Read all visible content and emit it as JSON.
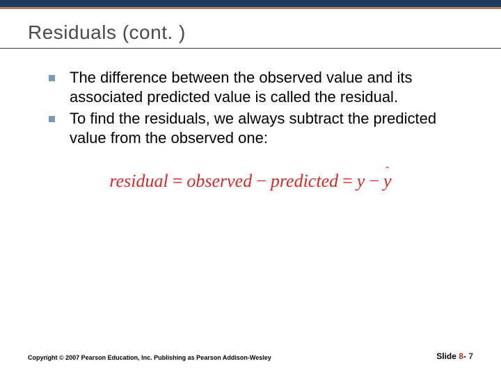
{
  "title": "Residuals (cont. )",
  "bullets": [
    "The difference between the observed value and its associated predicted value is called the residual.",
    "To find the residuals, we always subtract the predicted value from the observed one:"
  ],
  "formula": {
    "lhs": "residual",
    "term1": "observed",
    "term2": "predicted",
    "var1": "y",
    "var2": "y",
    "color": "#d42a2a"
  },
  "footer": {
    "copyright": "Copyright © 2007 Pearson Education, Inc. Publishing as Pearson Addison-Wesley",
    "slide_label": "Slide",
    "chapter": "8",
    "page": "7"
  },
  "colors": {
    "top_border": "#1f3a5f",
    "accent": "#a67c52",
    "bullet": "#7a9bb8",
    "title": "#4a4a4a"
  }
}
